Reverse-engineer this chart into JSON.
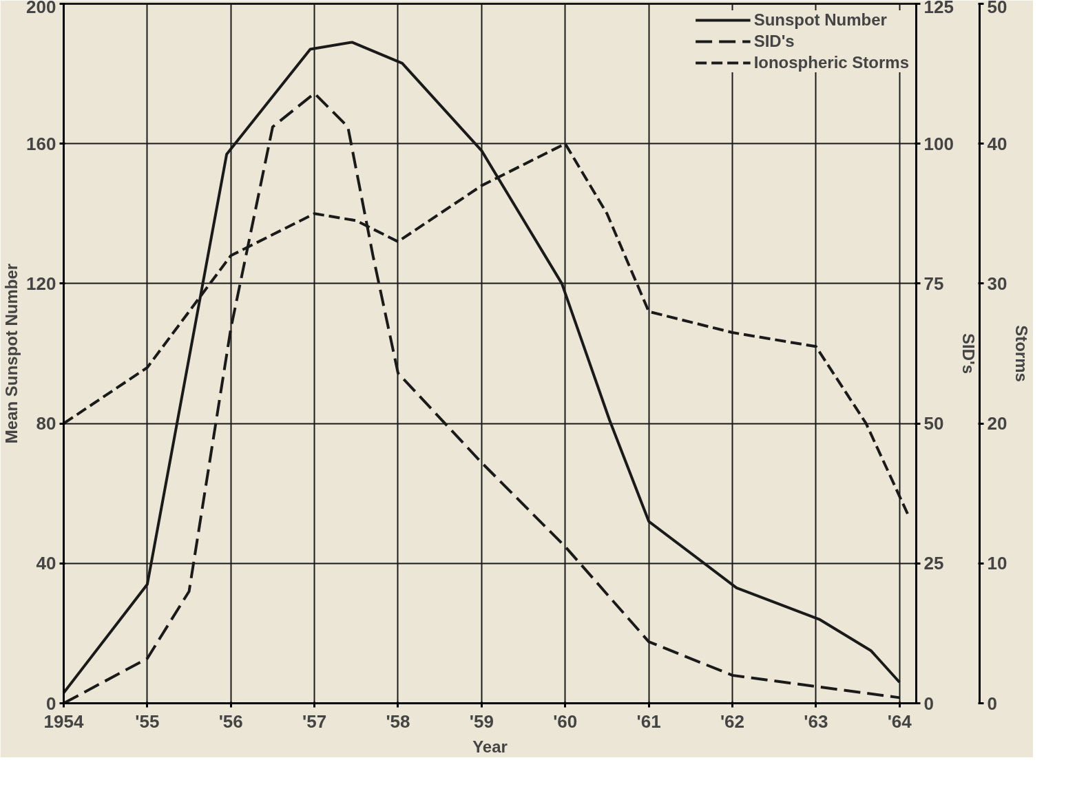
{
  "chart_data": {
    "type": "line",
    "xlabel": "Year",
    "ylabel": "Mean Sunspot Number",
    "y2label": "SID's",
    "y3label": "Storms",
    "xlim": [
      1954,
      1964.2
    ],
    "xticks": [
      {
        "value": 1954,
        "label": "1954"
      },
      {
        "value": 1955,
        "label": "'55"
      },
      {
        "value": 1956,
        "label": "'56"
      },
      {
        "value": 1957,
        "label": "'57"
      },
      {
        "value": 1958,
        "label": "'58"
      },
      {
        "value": 1959,
        "label": "'59"
      },
      {
        "value": 1960,
        "label": "'60"
      },
      {
        "value": 1961,
        "label": "'61"
      },
      {
        "value": 1962,
        "label": "'62"
      },
      {
        "value": 1963,
        "label": "'63"
      },
      {
        "value": 1964,
        "label": "'64"
      }
    ],
    "ylim": [
      0,
      200
    ],
    "yticks": [
      0,
      40,
      80,
      120,
      160,
      200
    ],
    "y2lim": [
      0,
      125
    ],
    "y2ticks": [
      0,
      25,
      50,
      75,
      100,
      125
    ],
    "y3lim": [
      0,
      50
    ],
    "y3ticks": [
      0,
      10,
      20,
      30,
      40,
      50
    ],
    "grid": true,
    "legend": "top right",
    "series": [
      {
        "name": "Sunspot Number",
        "color": "#1a1a1a",
        "line_style": "solid",
        "x": [
          1954.0,
          1955.0,
          1955.95,
          1956.95,
          1957.45,
          1958.05,
          1959.0,
          1959.96,
          1960.53,
          1961.0,
          1962.05,
          1963.04,
          1963.66,
          1964.0
        ],
        "values": [
          3,
          34,
          157,
          187,
          189,
          183,
          158,
          120,
          81,
          52,
          33,
          24,
          15,
          6
        ]
      },
      {
        "name": "SID's",
        "color": "#1a1a1a",
        "line_style": "dashed",
        "axis": "y2",
        "x": [
          1954.0,
          1955.0,
          1955.5,
          1956.0,
          1956.5,
          1957.0,
          1957.4,
          1957.7,
          1958.0,
          1959.0,
          1960.0,
          1961.0,
          1962.0,
          1963.0,
          1964.0
        ],
        "values": [
          0,
          8,
          20,
          67,
          103,
          109,
          103,
          80,
          59,
          43,
          28,
          11,
          5,
          3,
          1
        ]
      },
      {
        "name": "Ionospheric Storms",
        "color": "#1a1a1a",
        "line_style": "dashed",
        "axis": "y3",
        "x": [
          1954.0,
          1955.0,
          1956.0,
          1957.0,
          1957.5,
          1958.0,
          1959.0,
          1960.0,
          1960.5,
          1961.0,
          1962.0,
          1963.0,
          1963.6,
          1964.1
        ],
        "values": [
          20,
          24,
          32,
          35,
          34.5,
          33,
          37,
          40,
          35,
          28,
          26.5,
          25.5,
          20,
          13.5
        ]
      }
    ]
  }
}
